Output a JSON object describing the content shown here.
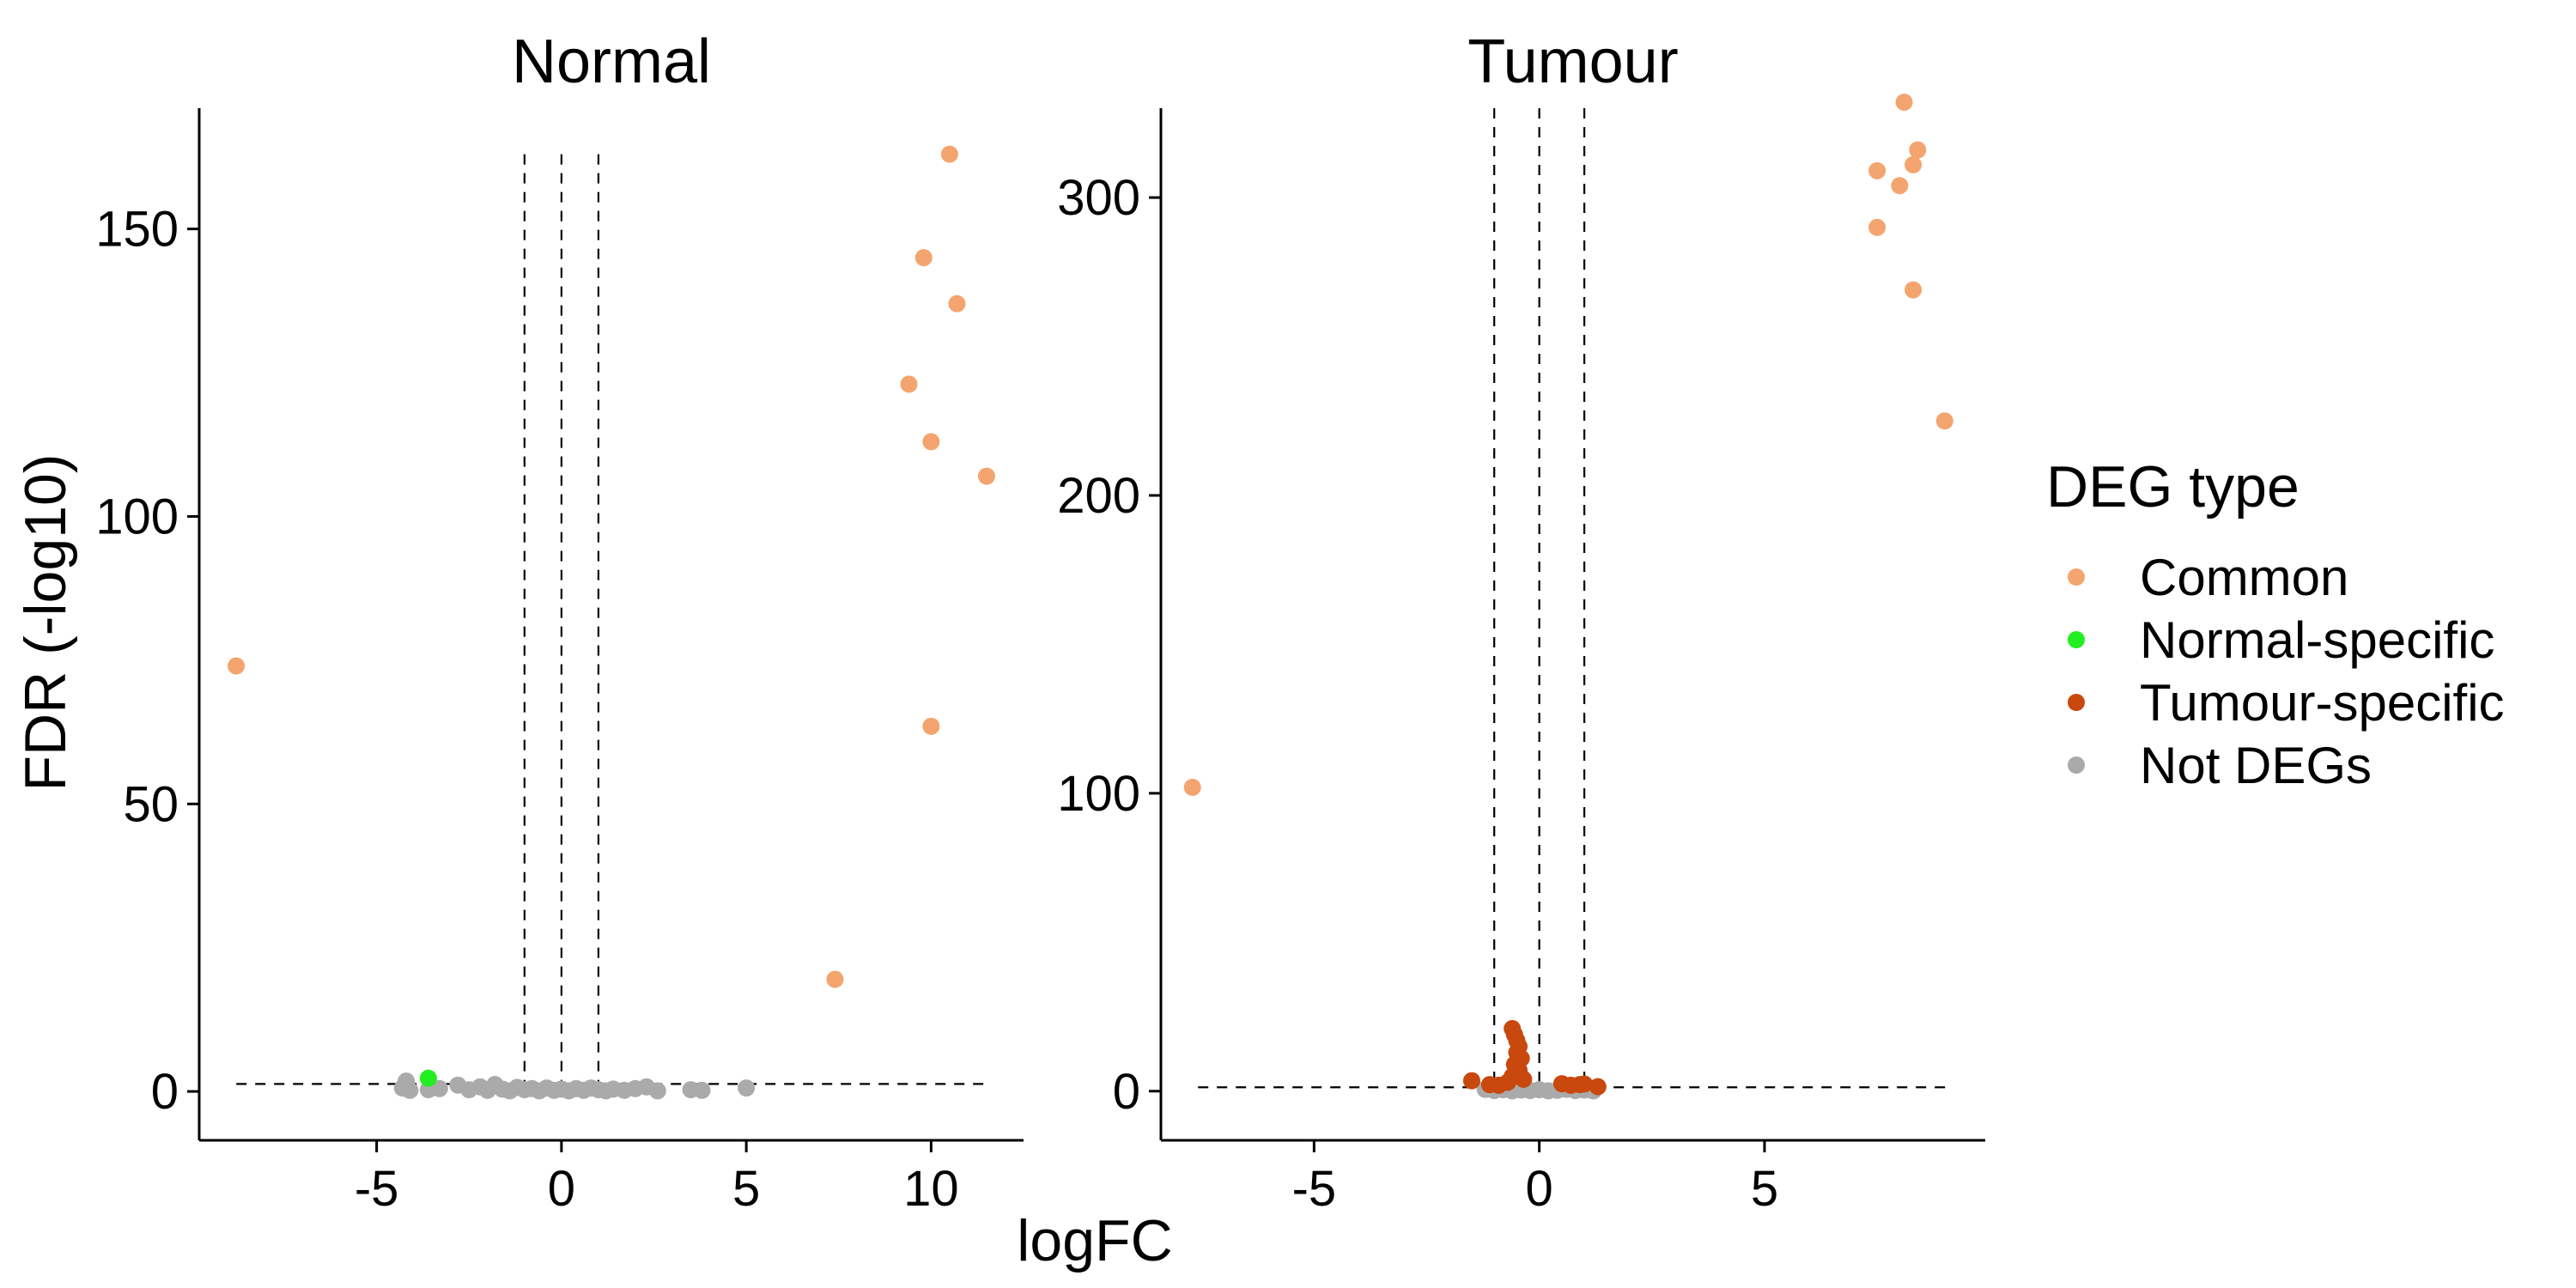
{
  "chart_data": {
    "type": "scatter",
    "xlabel": "logFC",
    "ylabel": "FDR (-log10)",
    "thresholds": {
      "logfc_lines": [
        -1,
        0,
        1
      ],
      "fdr_line": 1.3
    },
    "grid": false,
    "legend": {
      "title": "DEG type",
      "placement": "right",
      "entries": [
        {
          "name": "Common",
          "color": "#F4A46E"
        },
        {
          "name": "Normal-specific",
          "color": "#22EE22"
        },
        {
          "name": "Tumour-specific",
          "color": "#C8480E"
        },
        {
          "name": "Not DEGs",
          "color": "#AAAAAA"
        }
      ]
    },
    "panels": [
      {
        "title": "Normal",
        "xlim": [
          -9.8,
          12.5
        ],
        "ylim": [
          -8.5,
          171
        ],
        "xticks": [
          -5,
          0,
          5,
          10
        ],
        "yticks": [
          0,
          50,
          100,
          150
        ],
        "threshold_top": 163,
        "points": [
          {
            "x": 10.5,
            "y": 163,
            "type": "Common"
          },
          {
            "x": 9.8,
            "y": 145,
            "type": "Common"
          },
          {
            "x": 10.7,
            "y": 137,
            "type": "Common"
          },
          {
            "x": 9.4,
            "y": 123,
            "type": "Common"
          },
          {
            "x": 10.0,
            "y": 113,
            "type": "Common"
          },
          {
            "x": 11.5,
            "y": 107,
            "type": "Common"
          },
          {
            "x": -8.8,
            "y": 74,
            "type": "Common"
          },
          {
            "x": 10.0,
            "y": 63.5,
            "type": "Common"
          },
          {
            "x": 7.4,
            "y": 19.5,
            "type": "Common"
          },
          {
            "x": -3.6,
            "y": 2.3,
            "type": "Normal-specific"
          },
          {
            "x": -4.2,
            "y": 1.8,
            "type": "Not DEGs"
          },
          {
            "x": -4.3,
            "y": 0.6,
            "type": "Not DEGs"
          },
          {
            "x": -4.1,
            "y": 0.2,
            "type": "Not DEGs"
          },
          {
            "x": -3.6,
            "y": 0.3,
            "type": "Not DEGs"
          },
          {
            "x": -3.3,
            "y": 0.5,
            "type": "Not DEGs"
          },
          {
            "x": -2.8,
            "y": 1.1,
            "type": "Not DEGs"
          },
          {
            "x": -2.5,
            "y": 0.3,
            "type": "Not DEGs"
          },
          {
            "x": -2.2,
            "y": 0.8,
            "type": "Not DEGs"
          },
          {
            "x": -2.0,
            "y": 0.2,
            "type": "Not DEGs"
          },
          {
            "x": -1.8,
            "y": 1.2,
            "type": "Not DEGs"
          },
          {
            "x": -1.6,
            "y": 0.4,
            "type": "Not DEGs"
          },
          {
            "x": -1.4,
            "y": 0.1,
            "type": "Not DEGs"
          },
          {
            "x": -1.2,
            "y": 0.7,
            "type": "Not DEGs"
          },
          {
            "x": -1.0,
            "y": 0.3,
            "type": "Not DEGs"
          },
          {
            "x": -0.8,
            "y": 0.5,
            "type": "Not DEGs"
          },
          {
            "x": -0.6,
            "y": 0.1,
            "type": "Not DEGs"
          },
          {
            "x": -0.4,
            "y": 0.6,
            "type": "Not DEGs"
          },
          {
            "x": -0.2,
            "y": 0.2,
            "type": "Not DEGs"
          },
          {
            "x": 0.0,
            "y": 0.4,
            "type": "Not DEGs"
          },
          {
            "x": 0.2,
            "y": 0.1,
            "type": "Not DEGs"
          },
          {
            "x": 0.4,
            "y": 0.5,
            "type": "Not DEGs"
          },
          {
            "x": 0.6,
            "y": 0.2,
            "type": "Not DEGs"
          },
          {
            "x": 0.8,
            "y": 0.6,
            "type": "Not DEGs"
          },
          {
            "x": 1.0,
            "y": 0.3,
            "type": "Not DEGs"
          },
          {
            "x": 1.2,
            "y": 0.1,
            "type": "Not DEGs"
          },
          {
            "x": 1.4,
            "y": 0.4,
            "type": "Not DEGs"
          },
          {
            "x": 1.7,
            "y": 0.2,
            "type": "Not DEGs"
          },
          {
            "x": 2.0,
            "y": 0.5,
            "type": "Not DEGs"
          },
          {
            "x": 2.3,
            "y": 0.8,
            "type": "Not DEGs"
          },
          {
            "x": 2.6,
            "y": 0.1,
            "type": "Not DEGs"
          },
          {
            "x": 3.5,
            "y": 0.3,
            "type": "Not DEGs"
          },
          {
            "x": 3.8,
            "y": 0.2,
            "type": "Not DEGs"
          },
          {
            "x": 5.0,
            "y": 0.6,
            "type": "Not DEGs"
          }
        ]
      },
      {
        "title": "Tumour",
        "xlim": [
          -8.4,
          9.9
        ],
        "ylim": [
          -16.5,
          330
        ],
        "xticks": [
          -5,
          0,
          5
        ],
        "yticks": [
          0,
          100,
          200,
          300
        ],
        "threshold_top": 330,
        "points": [
          {
            "x": 8.1,
            "y": 332,
            "type": "Common"
          },
          {
            "x": 8.4,
            "y": 316,
            "type": "Common"
          },
          {
            "x": 8.3,
            "y": 311,
            "type": "Common"
          },
          {
            "x": 7.5,
            "y": 309,
            "type": "Common"
          },
          {
            "x": 8.0,
            "y": 304,
            "type": "Common"
          },
          {
            "x": 7.5,
            "y": 290,
            "type": "Common"
          },
          {
            "x": 8.3,
            "y": 269,
            "type": "Common"
          },
          {
            "x": 9.0,
            "y": 225,
            "type": "Common"
          },
          {
            "x": -7.7,
            "y": 102,
            "type": "Common"
          },
          {
            "x": -0.6,
            "y": 21,
            "type": "Tumour-specific"
          },
          {
            "x": -0.55,
            "y": 19,
            "type": "Tumour-specific"
          },
          {
            "x": -0.5,
            "y": 17,
            "type": "Tumour-specific"
          },
          {
            "x": -0.45,
            "y": 15,
            "type": "Tumour-specific"
          },
          {
            "x": -0.5,
            "y": 13,
            "type": "Tumour-specific"
          },
          {
            "x": -0.4,
            "y": 11,
            "type": "Tumour-specific"
          },
          {
            "x": -0.55,
            "y": 9,
            "type": "Tumour-specific"
          },
          {
            "x": -0.45,
            "y": 7,
            "type": "Tumour-specific"
          },
          {
            "x": -0.6,
            "y": 5,
            "type": "Tumour-specific"
          },
          {
            "x": -0.35,
            "y": 4,
            "type": "Tumour-specific"
          },
          {
            "x": -0.7,
            "y": 3,
            "type": "Tumour-specific"
          },
          {
            "x": -1.5,
            "y": 3.5,
            "type": "Tumour-specific"
          },
          {
            "x": -1.1,
            "y": 2.2,
            "type": "Tumour-specific"
          },
          {
            "x": -0.9,
            "y": 2,
            "type": "Tumour-specific"
          },
          {
            "x": 0.5,
            "y": 2.5,
            "type": "Tumour-specific"
          },
          {
            "x": 0.7,
            "y": 2,
            "type": "Tumour-specific"
          },
          {
            "x": 0.9,
            "y": 2.2,
            "type": "Tumour-specific"
          },
          {
            "x": 1.0,
            "y": 2.4,
            "type": "Tumour-specific"
          },
          {
            "x": 1.3,
            "y": 1.5,
            "type": "Tumour-specific"
          },
          {
            "x": -1.2,
            "y": 0.6,
            "type": "Not DEGs"
          },
          {
            "x": -1.0,
            "y": 0.2,
            "type": "Not DEGs"
          },
          {
            "x": -0.8,
            "y": 0.5,
            "type": "Not DEGs"
          },
          {
            "x": -0.6,
            "y": 0.1,
            "type": "Not DEGs"
          },
          {
            "x": -0.4,
            "y": 0.4,
            "type": "Not DEGs"
          },
          {
            "x": -0.2,
            "y": 0.2,
            "type": "Not DEGs"
          },
          {
            "x": 0.0,
            "y": 0.5,
            "type": "Not DEGs"
          },
          {
            "x": 0.2,
            "y": 0.1,
            "type": "Not DEGs"
          },
          {
            "x": 0.4,
            "y": 0.3,
            "type": "Not DEGs"
          },
          {
            "x": 0.6,
            "y": 0.6,
            "type": "Not DEGs"
          },
          {
            "x": 0.8,
            "y": 0.2,
            "type": "Not DEGs"
          },
          {
            "x": 1.0,
            "y": 0.4,
            "type": "Not DEGs"
          },
          {
            "x": 1.2,
            "y": 0.1,
            "type": "Not DEGs"
          }
        ]
      }
    ]
  }
}
